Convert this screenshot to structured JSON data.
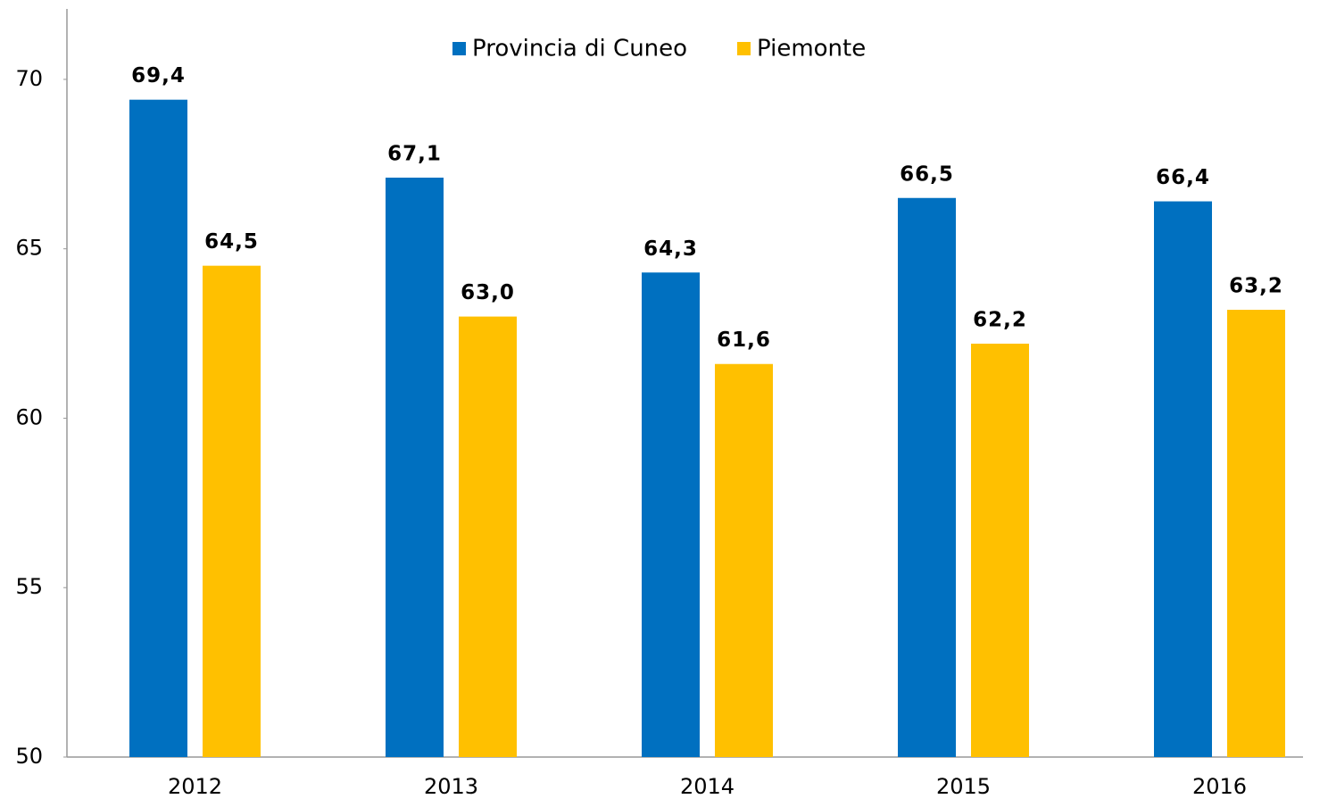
{
  "chart_data": {
    "type": "bar",
    "categories": [
      "2012",
      "2013",
      "2014",
      "2015",
      "2016"
    ],
    "series": [
      {
        "name": "Provincia di Cuneo",
        "color": "#0070c0",
        "values": [
          69.4,
          67.1,
          64.3,
          66.5,
          66.4
        ],
        "value_labels": [
          "69,4",
          "67,1",
          "64,3",
          "66,5",
          "66,4"
        ]
      },
      {
        "name": "Piemonte",
        "color": "#ffc000",
        "values": [
          64.5,
          63.0,
          61.6,
          62.2,
          63.2
        ],
        "value_labels": [
          "64,5",
          "63,0",
          "61,6",
          "62,2",
          "63,2"
        ]
      }
    ],
    "ylim": [
      50,
      72
    ],
    "yticks": [
      50,
      55,
      60,
      65,
      70
    ],
    "grid": false,
    "legend": "top"
  }
}
